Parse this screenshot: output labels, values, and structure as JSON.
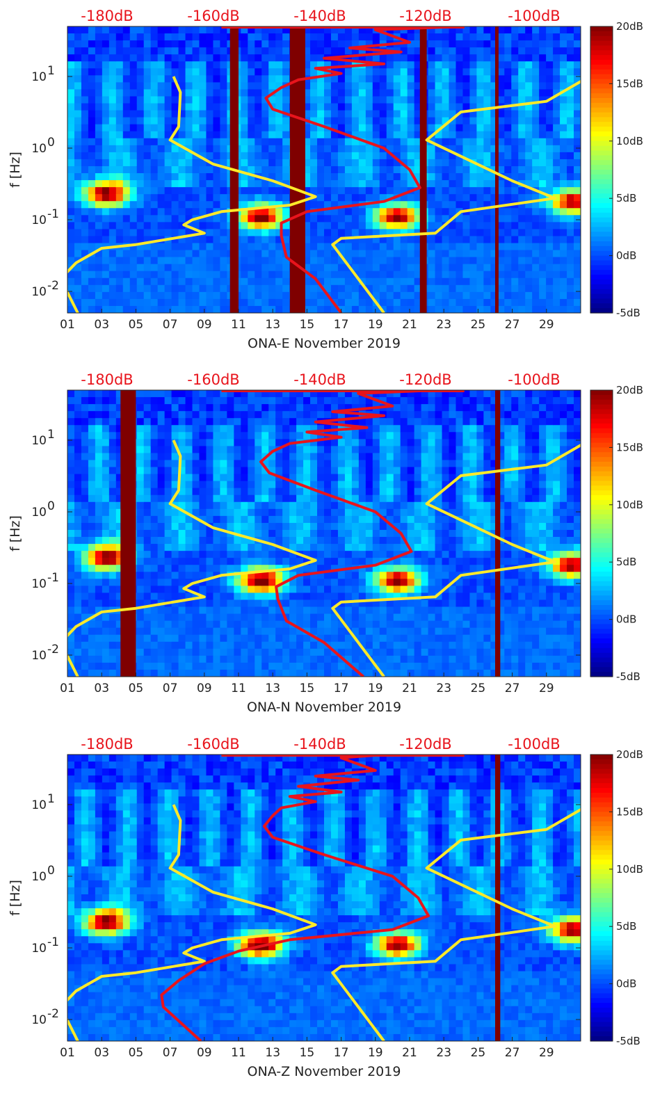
{
  "chart_data": [
    {
      "type": "heatmap",
      "title": "ONA-E November 2019",
      "xlabel": "ONA-E November 2019",
      "ylabel": "f [Hz]",
      "x_ticks": [
        "01",
        "03",
        "05",
        "07",
        "09",
        "11",
        "13",
        "15",
        "17",
        "19",
        "21",
        "23",
        "25",
        "27",
        "29"
      ],
      "xlim_days": [
        1,
        31
      ],
      "y_scale": "log",
      "ylim_hz": [
        0.005,
        50
      ],
      "y_ticks": [
        {
          "e": "-2"
        },
        {
          "e": "-1"
        },
        {
          "e": "0"
        },
        {
          "e": "1"
        }
      ],
      "y_tick_base": "10",
      "top_scale_labels": [
        "-180dB",
        "-160dB",
        "-140dB",
        "-120dB",
        "-100dB"
      ],
      "colorbar": {
        "labels": [
          "20dB",
          "15dB",
          "10dB",
          "5dB",
          "0dB",
          "-5dB"
        ],
        "range_db": [
          -5,
          20
        ]
      },
      "data_gaps_days": [
        [
          10.5,
          11.0
        ],
        [
          14.0,
          14.9
        ],
        [
          21.6,
          22.0
        ],
        [
          26.0,
          26.2
        ]
      ],
      "hotspots": [
        {
          "day": 3.3,
          "f": 0.23,
          "db": 18
        },
        {
          "day": 12.3,
          "f": 0.11,
          "db": 18
        },
        {
          "day": 20.3,
          "f": 0.11,
          "db": 17
        },
        {
          "day": 30.5,
          "f": 0.18,
          "db": 16
        }
      ],
      "series": [
        {
          "name": "noise model (yellow)",
          "color": "#ffea2a",
          "points": [
            [
              7.2,
              10
            ],
            [
              7.6,
              6
            ],
            [
              7.5,
              2
            ],
            [
              7.0,
              1.3
            ],
            [
              9.5,
              0.6
            ],
            [
              13.0,
              0.35
            ],
            [
              15.5,
              0.21
            ],
            [
              14.0,
              0.16
            ],
            [
              10.0,
              0.13
            ],
            [
              8.3,
              0.1
            ],
            [
              7.8,
              0.085
            ],
            [
              9.0,
              0.065
            ],
            [
              5.0,
              0.045
            ],
            [
              3.0,
              0.04
            ],
            [
              1.5,
              0.025
            ],
            [
              0.6,
              0.015
            ],
            [
              1.6,
              0.005
            ]
          ]
        },
        {
          "name": "noise model (yellow) 2",
          "color": "#ffea2a",
          "points": [
            [
              31.5,
              10
            ],
            [
              29.0,
              4.5
            ],
            [
              24.0,
              3.2
            ],
            [
              22.0,
              1.3
            ],
            [
              27.0,
              0.35
            ],
            [
              29.5,
              0.2
            ],
            [
              24.0,
              0.13
            ],
            [
              22.5,
              0.065
            ],
            [
              17.0,
              0.055
            ],
            [
              16.5,
              0.045
            ],
            [
              19.5,
              0.005
            ]
          ]
        },
        {
          "name": "red noise curve",
          "color": "#e8141c",
          "points": [
            [
              24.2,
              50
            ],
            [
              19.0,
              45
            ],
            [
              21.0,
              30
            ],
            [
              17.5,
              25
            ],
            [
              20.5,
              22
            ],
            [
              16.0,
              18
            ],
            [
              19.5,
              15
            ],
            [
              15.5,
              13
            ],
            [
              17.0,
              11
            ],
            [
              14.5,
              9
            ],
            [
              13.5,
              7
            ],
            [
              12.6,
              5
            ],
            [
              13.0,
              3.5
            ],
            [
              16.0,
              2.0
            ],
            [
              19.5,
              1.0
            ],
            [
              21.0,
              0.5
            ],
            [
              21.6,
              0.28
            ],
            [
              19.5,
              0.18
            ],
            [
              15.0,
              0.13
            ],
            [
              13.5,
              0.09
            ],
            [
              13.5,
              0.06
            ],
            [
              13.8,
              0.03
            ],
            [
              15.5,
              0.015
            ],
            [
              17.0,
              0.005
            ]
          ]
        }
      ]
    },
    {
      "type": "heatmap",
      "title": "ONA-N November 2019",
      "xlabel": "ONA-N November 2019",
      "ylabel": "f [Hz]",
      "x_ticks": [
        "01",
        "03",
        "05",
        "07",
        "09",
        "11",
        "13",
        "15",
        "17",
        "19",
        "21",
        "23",
        "25",
        "27",
        "29"
      ],
      "xlim_days": [
        1,
        31
      ],
      "y_scale": "log",
      "ylim_hz": [
        0.005,
        50
      ],
      "y_ticks": [
        {
          "e": "-2"
        },
        {
          "e": "-1"
        },
        {
          "e": "0"
        },
        {
          "e": "1"
        }
      ],
      "y_tick_base": "10",
      "top_scale_labels": [
        "-180dB",
        "-160dB",
        "-140dB",
        "-120dB",
        "-100dB"
      ],
      "colorbar": {
        "labels": [
          "20dB",
          "15dB",
          "10dB",
          "5dB",
          "0dB",
          "-5dB"
        ],
        "range_db": [
          -5,
          20
        ]
      },
      "data_gaps_days": [
        [
          4.1,
          5.0
        ],
        [
          26.0,
          26.3
        ]
      ],
      "hotspots": [
        {
          "day": 3.3,
          "f": 0.23,
          "db": 18
        },
        {
          "day": 12.3,
          "f": 0.11,
          "db": 19
        },
        {
          "day": 20.3,
          "f": 0.11,
          "db": 17
        },
        {
          "day": 30.5,
          "f": 0.18,
          "db": 17
        }
      ],
      "series": [
        {
          "name": "noise model (yellow)",
          "color": "#ffea2a",
          "points": [
            [
              7.2,
              10
            ],
            [
              7.6,
              6
            ],
            [
              7.5,
              2
            ],
            [
              7.0,
              1.3
            ],
            [
              9.5,
              0.6
            ],
            [
              13.0,
              0.35
            ],
            [
              15.5,
              0.21
            ],
            [
              14.0,
              0.16
            ],
            [
              10.0,
              0.13
            ],
            [
              8.3,
              0.1
            ],
            [
              7.8,
              0.085
            ],
            [
              9.0,
              0.065
            ],
            [
              5.0,
              0.045
            ],
            [
              3.0,
              0.04
            ],
            [
              1.5,
              0.025
            ],
            [
              0.6,
              0.015
            ],
            [
              1.6,
              0.005
            ]
          ]
        },
        {
          "name": "noise model (yellow) 2",
          "color": "#ffea2a",
          "points": [
            [
              31.5,
              10
            ],
            [
              29.0,
              4.5
            ],
            [
              24.0,
              3.2
            ],
            [
              22.0,
              1.3
            ],
            [
              27.0,
              0.35
            ],
            [
              29.5,
              0.2
            ],
            [
              24.0,
              0.13
            ],
            [
              22.5,
              0.065
            ],
            [
              17.0,
              0.055
            ],
            [
              16.5,
              0.045
            ],
            [
              19.5,
              0.005
            ]
          ]
        },
        {
          "name": "red noise curve",
          "color": "#e8141c",
          "points": [
            [
              22.5,
              50
            ],
            [
              18.0,
              45
            ],
            [
              20.0,
              30
            ],
            [
              16.5,
              25
            ],
            [
              19.5,
              22
            ],
            [
              15.5,
              18
            ],
            [
              18.5,
              15
            ],
            [
              15.0,
              13
            ],
            [
              17.0,
              11
            ],
            [
              14.0,
              9
            ],
            [
              13.0,
              7
            ],
            [
              12.3,
              5
            ],
            [
              12.8,
              3.5
            ],
            [
              15.5,
              2.0
            ],
            [
              19.0,
              1.0
            ],
            [
              20.5,
              0.5
            ],
            [
              21.1,
              0.28
            ],
            [
              19.0,
              0.18
            ],
            [
              14.5,
              0.13
            ],
            [
              13.2,
              0.09
            ],
            [
              13.3,
              0.06
            ],
            [
              13.8,
              0.03
            ],
            [
              16.0,
              0.015
            ],
            [
              18.3,
              0.005
            ]
          ]
        }
      ]
    },
    {
      "type": "heatmap",
      "title": "ONA-Z November 2019",
      "xlabel": "ONA-Z November 2019",
      "ylabel": "f [Hz]",
      "x_ticks": [
        "01",
        "03",
        "05",
        "07",
        "09",
        "11",
        "13",
        "15",
        "17",
        "19",
        "21",
        "23",
        "25",
        "27",
        "29"
      ],
      "xlim_days": [
        1,
        31
      ],
      "y_scale": "log",
      "ylim_hz": [
        0.005,
        50
      ],
      "y_ticks": [
        {
          "e": "-2"
        },
        {
          "e": "-1"
        },
        {
          "e": "0"
        },
        {
          "e": "1"
        }
      ],
      "y_tick_base": "10",
      "top_scale_labels": [
        "-180dB",
        "-160dB",
        "-140dB",
        "-120dB",
        "-100dB"
      ],
      "colorbar": {
        "labels": [
          "20dB",
          "15dB",
          "10dB",
          "5dB",
          "0dB",
          "-5dB"
        ],
        "range_db": [
          -5,
          20
        ]
      },
      "data_gaps_days": [
        [
          26.0,
          26.3
        ]
      ],
      "hotspots": [
        {
          "day": 3.3,
          "f": 0.23,
          "db": 18
        },
        {
          "day": 12.3,
          "f": 0.11,
          "db": 19
        },
        {
          "day": 20.3,
          "f": 0.11,
          "db": 17
        },
        {
          "day": 30.5,
          "f": 0.18,
          "db": 17
        }
      ],
      "series": [
        {
          "name": "noise model (yellow)",
          "color": "#ffea2a",
          "points": [
            [
              7.2,
              10
            ],
            [
              7.6,
              6
            ],
            [
              7.5,
              2
            ],
            [
              7.0,
              1.3
            ],
            [
              9.5,
              0.6
            ],
            [
              13.0,
              0.35
            ],
            [
              15.5,
              0.21
            ],
            [
              14.0,
              0.16
            ],
            [
              10.0,
              0.13
            ],
            [
              8.3,
              0.1
            ],
            [
              7.8,
              0.085
            ],
            [
              9.0,
              0.065
            ],
            [
              5.0,
              0.045
            ],
            [
              3.0,
              0.04
            ],
            [
              1.5,
              0.025
            ],
            [
              0.6,
              0.015
            ],
            [
              1.6,
              0.005
            ]
          ]
        },
        {
          "name": "noise model (yellow) 2",
          "color": "#ffea2a",
          "points": [
            [
              31.5,
              10
            ],
            [
              29.0,
              4.5
            ],
            [
              24.0,
              3.2
            ],
            [
              22.0,
              1.3
            ],
            [
              27.0,
              0.35
            ],
            [
              29.5,
              0.2
            ],
            [
              24.0,
              0.13
            ],
            [
              22.5,
              0.065
            ],
            [
              17.0,
              0.055
            ],
            [
              16.5,
              0.045
            ],
            [
              19.5,
              0.005
            ]
          ]
        },
        {
          "name": "red noise curve",
          "color": "#e8141c",
          "points": [
            [
              19.5,
              50
            ],
            [
              17.0,
              45
            ],
            [
              19.0,
              30
            ],
            [
              15.5,
              25
            ],
            [
              18.0,
              22
            ],
            [
              14.5,
              18
            ],
            [
              17.0,
              15
            ],
            [
              14.0,
              13
            ],
            [
              15.5,
              11
            ],
            [
              13.5,
              9
            ],
            [
              13.0,
              7
            ],
            [
              12.5,
              5
            ],
            [
              13.0,
              3.5
            ],
            [
              16.0,
              2.0
            ],
            [
              20.0,
              1.0
            ],
            [
              21.5,
              0.5
            ],
            [
              22.1,
              0.28
            ],
            [
              20.0,
              0.18
            ],
            [
              14.0,
              0.13
            ],
            [
              11.0,
              0.09
            ],
            [
              9.0,
              0.06
            ],
            [
              7.5,
              0.035
            ],
            [
              6.5,
              0.022
            ],
            [
              6.6,
              0.015
            ],
            [
              8.8,
              0.005
            ]
          ]
        }
      ]
    }
  ]
}
